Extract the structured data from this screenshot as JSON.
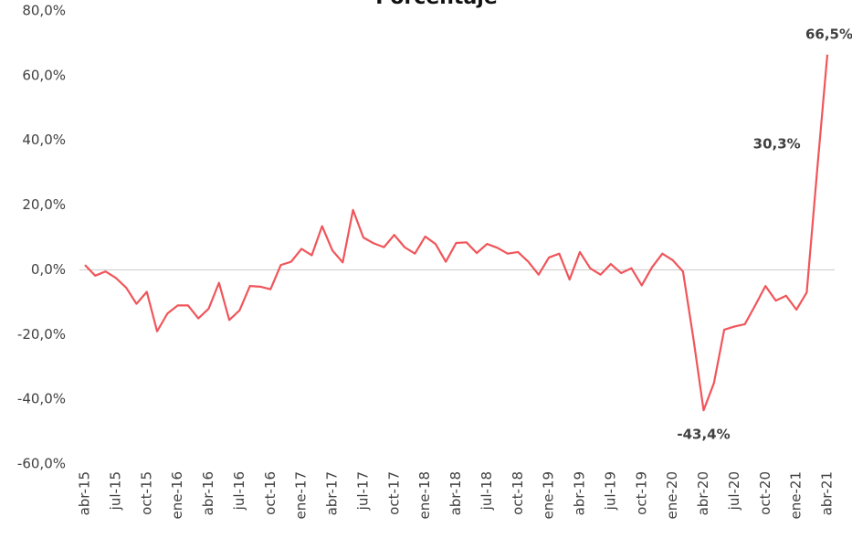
{
  "chart_data": {
    "type": "line",
    "title": "Porcentaje",
    "categories": [
      "abr-15",
      null,
      null,
      "jul-15",
      null,
      null,
      "oct-15",
      null,
      null,
      "ene-16",
      null,
      null,
      "abr-16",
      null,
      null,
      "jul-16",
      null,
      null,
      "oct-16",
      null,
      null,
      "ene-17",
      null,
      null,
      "abr-17",
      null,
      null,
      "jul-17",
      null,
      null,
      "oct-17",
      null,
      null,
      "ene-18",
      null,
      null,
      "abr-18",
      null,
      null,
      "jul-18",
      null,
      null,
      "oct-18",
      null,
      null,
      "ene-19",
      null,
      null,
      "abr-19",
      null,
      null,
      "jul-19",
      null,
      null,
      "oct-19",
      null,
      null,
      "ene-20",
      null,
      null,
      "abr-20",
      null,
      null,
      "jul-20",
      null,
      null,
      "oct-20",
      null,
      null,
      "ene-21",
      null,
      null,
      "abr-21"
    ],
    "series": [
      {
        "name": "Porcentaje",
        "color": "#f0555a",
        "values": [
          1.5,
          -1.8,
          -0.5,
          -2.5,
          -5.5,
          -10.5,
          -6.8,
          -19,
          -13.5,
          -11,
          -11,
          -15,
          -12,
          -4,
          -15.5,
          -12.5,
          -5,
          -5.2,
          -6,
          1.5,
          2.5,
          6.5,
          4.5,
          13.5,
          6,
          2.3,
          18.5,
          10,
          8.2,
          7,
          10.8,
          7,
          5,
          10.3,
          8,
          2.5,
          8.3,
          8.5,
          5.2,
          8,
          6.8,
          5,
          5.5,
          2.5,
          -1.5,
          3.8,
          5,
          -3,
          5.5,
          0.5,
          -1.5,
          1.8,
          -1,
          0.5,
          -4.8,
          0.8,
          5,
          3,
          -0.5,
          -21,
          -43.4,
          -35,
          -18.5,
          -17.5,
          -16.8,
          -11,
          -5,
          -9.5,
          -8,
          -12.3,
          -7,
          30.3,
          66.5
        ],
        "value_labels": [
          null,
          null,
          null,
          null,
          null,
          null,
          null,
          null,
          null,
          null,
          null,
          null,
          null,
          null,
          null,
          null,
          null,
          null,
          null,
          null,
          null,
          null,
          null,
          null,
          null,
          null,
          null,
          null,
          null,
          null,
          null,
          null,
          null,
          null,
          null,
          null,
          null,
          null,
          null,
          null,
          null,
          null,
          null,
          null,
          null,
          null,
          null,
          null,
          null,
          null,
          null,
          null,
          null,
          null,
          null,
          null,
          null,
          null,
          null,
          null,
          "-43,4%",
          null,
          null,
          null,
          null,
          null,
          null,
          null,
          null,
          null,
          null,
          "30,3%",
          "66,5%"
        ]
      }
    ],
    "ylim": [
      -60,
      80
    ],
    "yticks": [
      {
        "value": -60,
        "label": "-60,0%"
      },
      {
        "value": -40,
        "label": "-40,0%"
      },
      {
        "value": -20,
        "label": "-20,0%"
      },
      {
        "value": 0,
        "label": "0,0%"
      },
      {
        "value": 20,
        "label": "20,0%"
      },
      {
        "value": 40,
        "label": "40,0%"
      },
      {
        "value": 60,
        "label": "60,0%"
      },
      {
        "value": 80,
        "label": "80,0%"
      }
    ],
    "zero_line": true
  }
}
